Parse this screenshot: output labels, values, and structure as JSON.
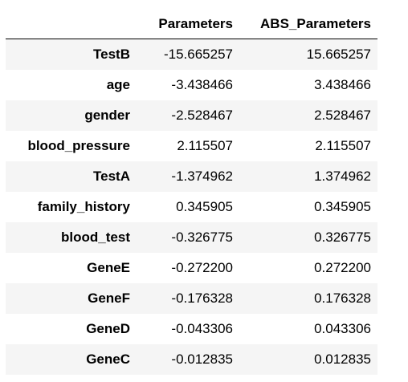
{
  "table": {
    "columns": [
      "",
      "Parameters",
      "ABS_Parameters"
    ],
    "rows": [
      {
        "index": "TestB",
        "parameters": "-15.665257",
        "abs_parameters": "15.665257"
      },
      {
        "index": "age",
        "parameters": "-3.438466",
        "abs_parameters": "3.438466"
      },
      {
        "index": "gender",
        "parameters": "-2.528467",
        "abs_parameters": "2.528467"
      },
      {
        "index": "blood_pressure",
        "parameters": "2.115507",
        "abs_parameters": "2.115507"
      },
      {
        "index": "TestA",
        "parameters": "-1.374962",
        "abs_parameters": "1.374962"
      },
      {
        "index": "family_history",
        "parameters": "0.345905",
        "abs_parameters": "0.345905"
      },
      {
        "index": "blood_test",
        "parameters": "-0.326775",
        "abs_parameters": "0.326775"
      },
      {
        "index": "GeneE",
        "parameters": "-0.272200",
        "abs_parameters": "0.272200"
      },
      {
        "index": "GeneF",
        "parameters": "-0.176328",
        "abs_parameters": "0.176328"
      },
      {
        "index": "GeneD",
        "parameters": "-0.043306",
        "abs_parameters": "0.043306"
      },
      {
        "index": "GeneC",
        "parameters": "-0.012835",
        "abs_parameters": "0.012835"
      }
    ]
  },
  "colors": {
    "stripe": "#f5f5f5",
    "background": "#ffffff",
    "header_rule": "#000000"
  }
}
